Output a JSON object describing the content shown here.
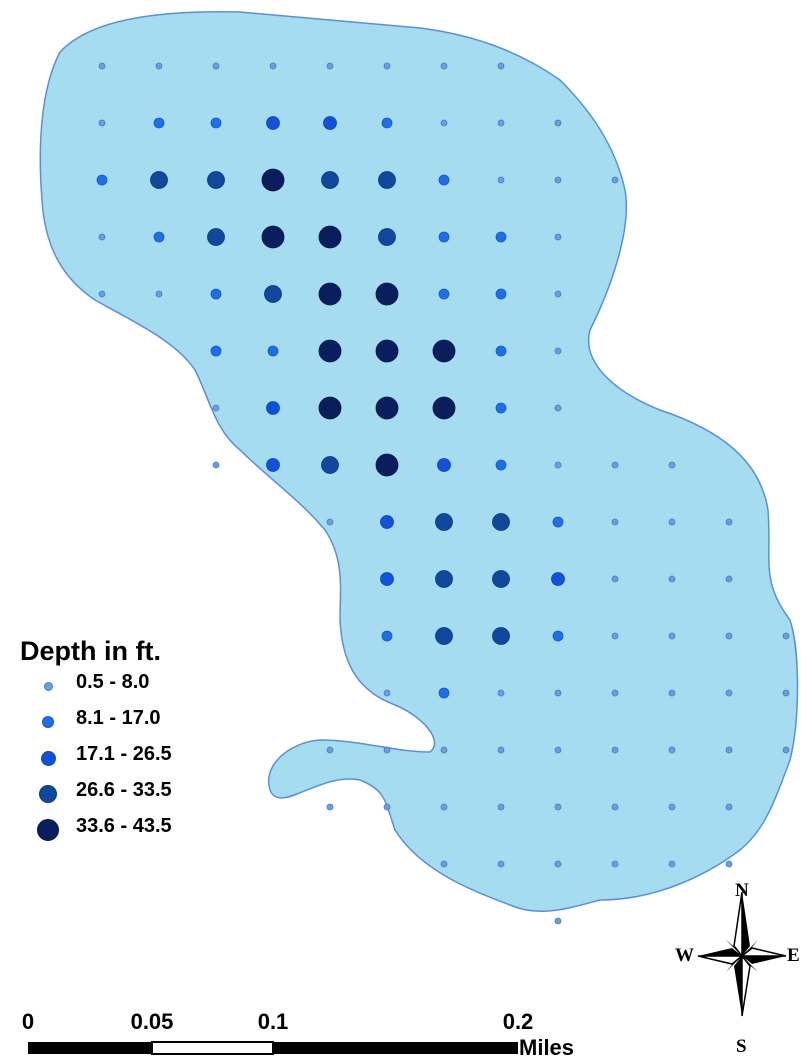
{
  "legend": {
    "title": "Depth in ft.",
    "classes": [
      {
        "label": "0.5 - 8.0",
        "color": "#6a9ee0",
        "outline": "#4a7bbf"
      },
      {
        "label": "8.1 - 17.0",
        "color": "#1e6fe6",
        "outline": "#1659c4"
      },
      {
        "label": "17.1 - 26.5",
        "color": "#1152d6",
        "outline": "#0d45b8"
      },
      {
        "label": "26.6 - 33.5",
        "color": "#10489c",
        "outline": "#0b3a82"
      },
      {
        "label": "33.6 - 43.5",
        "color": "#0a1e5e",
        "outline": "#061648"
      }
    ]
  },
  "scale_bar": {
    "labels": [
      "0",
      "0.05",
      "0.1",
      "0.2"
    ],
    "units": "Miles"
  },
  "north_arrow": {
    "n": "N",
    "s": "S",
    "e": "E",
    "w": "W"
  },
  "colors": {
    "water": "#a6dcef",
    "shoreline": "#5b8fd6"
  },
  "sample_points": {
    "depth_class_rows": [
      {
        "row": 0,
        "start_col": 0,
        "classes": [
          0,
          0,
          0,
          0,
          0,
          0,
          0,
          0
        ]
      },
      {
        "row": 1,
        "start_col": 0,
        "classes": [
          0,
          1,
          1,
          2,
          2,
          1,
          0,
          0,
          0
        ]
      },
      {
        "row": 2,
        "start_col": 0,
        "classes": [
          1,
          3,
          3,
          4,
          3,
          3,
          1,
          0,
          0,
          0
        ]
      },
      {
        "row": 3,
        "start_col": 0,
        "classes": [
          0,
          1,
          3,
          4,
          4,
          3,
          1,
          1,
          0
        ]
      },
      {
        "row": 4,
        "start_col": 0,
        "classes": [
          0,
          0,
          1,
          3,
          4,
          4,
          1,
          1,
          0
        ]
      },
      {
        "row": 5,
        "start_col": 2,
        "classes": [
          1,
          1,
          4,
          4,
          4,
          1,
          0
        ]
      },
      {
        "row": 6,
        "start_col": 2,
        "classes": [
          0,
          2,
          4,
          4,
          4,
          1,
          0
        ]
      },
      {
        "row": 7,
        "start_col": 2,
        "classes": [
          0,
          2,
          3,
          4,
          2,
          1,
          0,
          0,
          0
        ]
      },
      {
        "row": 8,
        "start_col": 4,
        "classes": [
          0,
          2,
          3,
          3,
          1,
          0,
          0,
          0
        ]
      },
      {
        "row": 9,
        "start_col": 5,
        "classes": [
          2,
          3,
          3,
          2,
          0,
          0,
          0
        ]
      },
      {
        "row": 10,
        "start_col": 5,
        "classes": [
          1,
          3,
          3,
          1,
          0,
          0,
          0,
          0
        ]
      },
      {
        "row": 11,
        "start_col": 5,
        "classes": [
          0,
          1,
          0,
          0,
          0,
          0,
          0,
          0
        ]
      },
      {
        "row": 12,
        "start_col": 4,
        "classes": [
          0,
          0,
          0,
          0,
          0,
          0,
          0,
          0,
          0
        ]
      },
      {
        "row": 13,
        "start_col": 4,
        "classes": [
          0,
          0,
          0,
          0,
          0,
          0,
          0,
          0
        ]
      },
      {
        "row": 14,
        "start_col": 6,
        "classes": [
          0,
          0,
          0,
          0,
          0,
          0
        ]
      },
      {
        "row": 15,
        "start_col": 8,
        "classes": [
          0
        ]
      }
    ]
  }
}
